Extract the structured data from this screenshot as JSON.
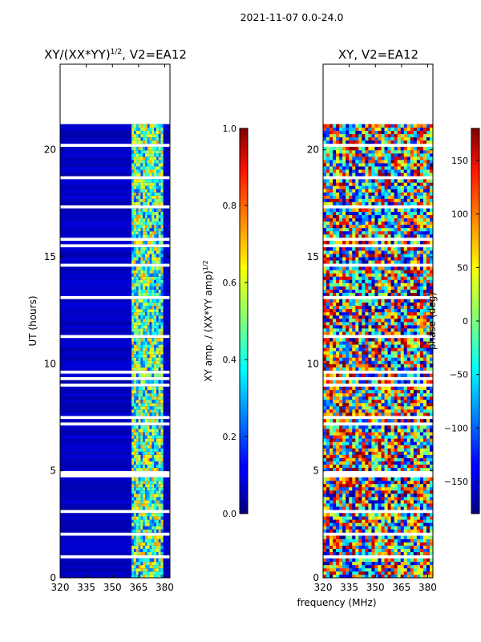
{
  "suptitle": "2021-11-07 0.0-24.0",
  "chart_data": [
    {
      "type": "heatmap",
      "title_main": "XY/(XX*YY)",
      "title_exp": "1/2",
      "title_rest": ", V2=EA12",
      "xlabel": "",
      "ylabel": "UT (hours)",
      "xlim": [
        320,
        383
      ],
      "ylim": [
        0,
        24
      ],
      "xticks": [
        "320",
        "335",
        "350",
        "365",
        "380"
      ],
      "xtick_values": [
        320,
        335,
        350,
        365,
        380
      ],
      "yticks": [
        "0",
        "5",
        "10",
        "15",
        "20"
      ],
      "ytick_values": [
        0,
        5,
        10,
        15,
        20
      ],
      "data_time_range": [
        0,
        21.2
      ],
      "bright_freq_range": [
        361,
        379
      ],
      "colorbar": {
        "label_main": "XY amp. / (XX*YY amp)",
        "label_exp": "1/2",
        "range": [
          0,
          1
        ],
        "ticks": [
          "0.0",
          "0.2",
          "0.4",
          "0.6",
          "0.8",
          "1.0"
        ],
        "tick_values": [
          0,
          0.2,
          0.4,
          0.6,
          0.8,
          1.0
        ]
      }
    },
    {
      "type": "heatmap",
      "title": "XY, V2=EA12",
      "xlabel": "frequency (MHz)",
      "ylabel": "",
      "xlim": [
        320,
        383
      ],
      "ylim": [
        0,
        24
      ],
      "xticks": [
        "320",
        "335",
        "350",
        "365",
        "380"
      ],
      "xtick_values": [
        320,
        335,
        350,
        365,
        380
      ],
      "yticks": [
        "0",
        "5",
        "10",
        "15",
        "20"
      ],
      "ytick_values": [
        0,
        5,
        10,
        15,
        20
      ],
      "data_time_range": [
        0,
        21.2
      ],
      "colorbar": {
        "label": "phase (deg)",
        "range": [
          -180,
          180
        ],
        "ticks": [
          "−150",
          "−100",
          "−50",
          "0",
          "50",
          "100",
          "150"
        ],
        "tick_values": [
          -150,
          -100,
          -50,
          0,
          50,
          100,
          150
        ]
      }
    }
  ]
}
